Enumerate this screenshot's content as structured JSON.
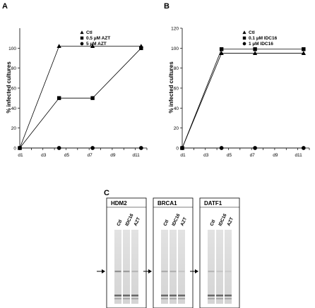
{
  "panel_a": {
    "label": "A",
    "chart_data": {
      "type": "line",
      "ylabel": "% infected cultures",
      "xlabel": "",
      "x_ticks": [
        "d1",
        "d3",
        "d5",
        "d7",
        "d9",
        "d11"
      ],
      "y_ticks": [
        0,
        20,
        40,
        60,
        80,
        100
      ],
      "ylim": [
        0,
        120
      ],
      "xlim": [
        1,
        12
      ],
      "x": [
        1,
        4.4,
        7.3,
        11.5
      ],
      "legend_position": "top-right",
      "series": [
        {
          "name": "Ctl",
          "marker": "triangle",
          "values": [
            0,
            102,
            102,
            102
          ]
        },
        {
          "name": "0.5 µM AZT",
          "marker": "square",
          "values": [
            0,
            50,
            50,
            100
          ]
        },
        {
          "name": "5 µM AZT",
          "marker": "circle",
          "values": [
            0,
            0,
            0,
            0
          ]
        }
      ]
    }
  },
  "panel_b": {
    "label": "B",
    "chart_data": {
      "type": "line",
      "ylabel": "% infected cultures",
      "xlabel": "",
      "x_ticks": [
        "d1",
        "d3",
        "d5",
        "d7",
        "d9",
        "d11"
      ],
      "y_ticks": [
        0,
        20,
        40,
        60,
        80,
        100,
        120
      ],
      "ylim": [
        0,
        120
      ],
      "xlim": [
        1,
        12
      ],
      "x": [
        1,
        4.4,
        7.3,
        11.5
      ],
      "legend_position": "top-right",
      "series": [
        {
          "name": "Ctl",
          "marker": "triangle",
          "values": [
            0,
            95,
            95,
            95
          ]
        },
        {
          "name": "0.1 µM IDC16",
          "marker": "square",
          "values": [
            0,
            99,
            99,
            99
          ]
        },
        {
          "name": "1 µM IDC16",
          "marker": "circle",
          "values": [
            0,
            0,
            0,
            0
          ]
        }
      ]
    }
  },
  "panel_c": {
    "label": "C",
    "blots": [
      {
        "title": "HDM2",
        "lanes": [
          "Ctl",
          "IDC16",
          "AZT"
        ],
        "band_intensity": [
          0.55,
          0.45,
          0.25
        ]
      },
      {
        "title": "BRCA1",
        "lanes": [
          "Ctl",
          "IDC16",
          "AZT"
        ],
        "band_intensity": [
          0.35,
          0.3,
          0.15
        ]
      },
      {
        "title": "DATF1",
        "lanes": [
          "Ctl",
          "IDC16",
          "AZT"
        ],
        "band_intensity": [
          0.25,
          0.15,
          0.1
        ]
      }
    ]
  }
}
